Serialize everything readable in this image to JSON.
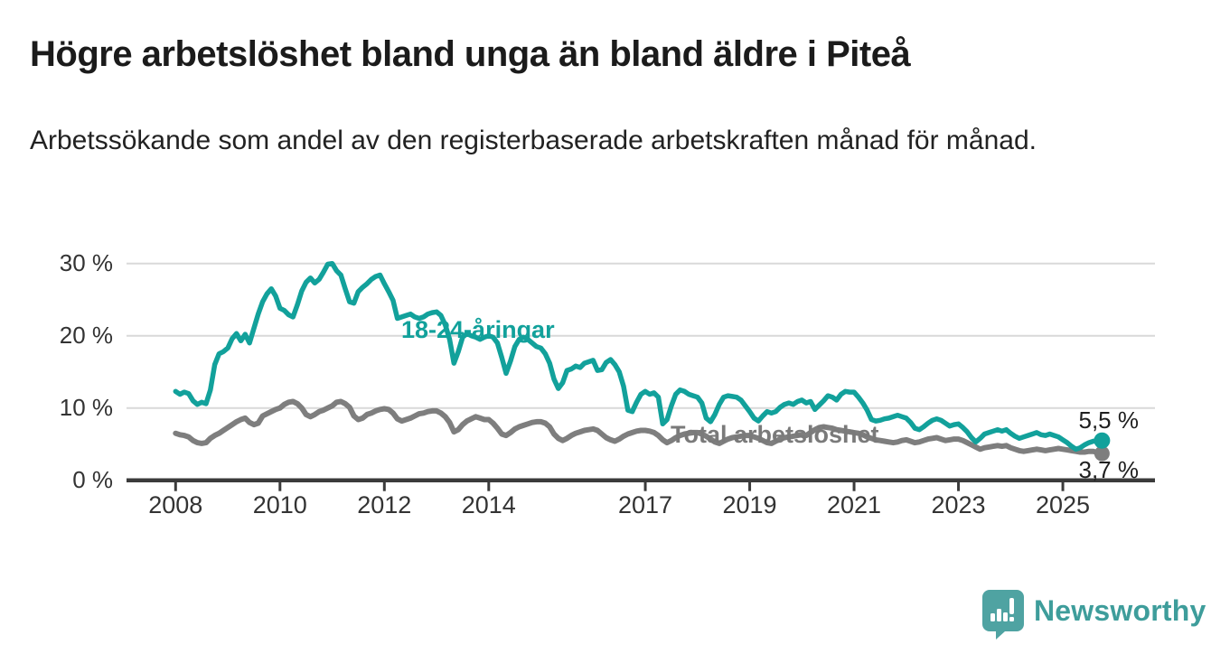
{
  "header": {
    "title": "Högre arbetslöshet bland unga än bland äldre i Piteå",
    "subtitle": "Arbetssökande som andel av den registerbaserade arbetskraften månad för månad."
  },
  "chart_data": {
    "type": "line",
    "title": "Högre arbetslöshet bland unga än bland äldre i Piteå",
    "subtitle": "Arbetssökande som andel av den registerbaserade arbetskraften månad för månad.",
    "x_start_year": 2008,
    "points_per_year": 12,
    "x_tick_years": [
      2008,
      2010,
      2012,
      2014,
      2017,
      2019,
      2021,
      2023,
      2025
    ],
    "x_tick_labels": [
      "2008",
      "2010",
      "2012",
      "2014",
      "2017",
      "2019",
      "2021",
      "2023",
      "2025"
    ],
    "y_ticks": [
      {
        "value": 30,
        "label": "30 %"
      },
      {
        "value": 20,
        "label": "20 %"
      },
      {
        "value": 10,
        "label": "10 %"
      },
      {
        "value": 0,
        "label": "0 %"
      }
    ],
    "ylim": [
      0,
      32
    ],
    "grid": "horizontal",
    "legend_position": "inline-labels",
    "series": [
      {
        "name": "18-24-åringar",
        "color": "#12a19b",
        "end_label": "5,5 %",
        "end_value": 5.5,
        "values": [
          12.3,
          11.9,
          12.2,
          12.0,
          11.0,
          10.5,
          10.8,
          10.6,
          12.5,
          16.0,
          17.5,
          17.8,
          18.3,
          19.6,
          20.3,
          19.3,
          20.2,
          19.0,
          21.0,
          23.0,
          24.7,
          25.8,
          26.5,
          25.5,
          23.8,
          23.5,
          22.9,
          22.6,
          24.3,
          26.2,
          27.4,
          28.0,
          27.3,
          27.8,
          28.8,
          29.9,
          30.0,
          29.0,
          28.4,
          26.5,
          24.7,
          24.5,
          26.1,
          26.7,
          27.2,
          27.8,
          28.2,
          28.4,
          27.2,
          26.1,
          24.9,
          22.4,
          22.6,
          22.8,
          23.0,
          22.6,
          22.4,
          22.6,
          23.0,
          23.2,
          23.3,
          22.8,
          21.5,
          19.5,
          16.2,
          17.8,
          19.8,
          20.3,
          20.0,
          19.8,
          19.5,
          19.8,
          20.0,
          19.8,
          19.0,
          17.0,
          14.8,
          16.5,
          18.5,
          19.5,
          19.8,
          19.5,
          19.0,
          18.5,
          18.3,
          17.5,
          16.2,
          14.0,
          12.7,
          13.5,
          15.2,
          15.4,
          15.8,
          15.6,
          16.2,
          16.4,
          16.6,
          15.2,
          15.3,
          16.3,
          16.7,
          16.0,
          15.0,
          13.0,
          9.7,
          9.5,
          10.8,
          11.9,
          12.3,
          11.9,
          12.1,
          11.5,
          7.8,
          8.4,
          10.3,
          11.9,
          12.5,
          12.3,
          11.9,
          11.7,
          11.5,
          10.7,
          8.6,
          8.1,
          9.1,
          10.5,
          11.5,
          11.7,
          11.6,
          11.5,
          11.1,
          10.3,
          9.5,
          8.6,
          8.2,
          8.9,
          9.5,
          9.3,
          9.5,
          10.1,
          10.5,
          10.7,
          10.5,
          10.9,
          11.1,
          10.7,
          10.9,
          9.8,
          10.4,
          11.0,
          11.7,
          11.5,
          11.1,
          11.9,
          12.3,
          12.2,
          12.2,
          11.5,
          10.7,
          9.7,
          8.4,
          8.2,
          8.3,
          8.5,
          8.6,
          8.8,
          9.0,
          8.8,
          8.6,
          8.0,
          7.2,
          7.0,
          7.4,
          7.9,
          8.3,
          8.5,
          8.3,
          7.9,
          7.5,
          7.7,
          7.8,
          7.3,
          6.7,
          5.9,
          5.3,
          5.8,
          6.4,
          6.6,
          6.8,
          7.0,
          6.8,
          7.0,
          6.5,
          6.1,
          5.8,
          6.0,
          6.2,
          6.4,
          6.6,
          6.3,
          6.2,
          6.4,
          6.2,
          6.0,
          5.6,
          5.2,
          4.7,
          4.3,
          4.5,
          4.9,
          5.2,
          5.4,
          5.5,
          5.5
        ]
      },
      {
        "name": "Total arbetslöshet",
        "color": "#7e7e7e",
        "end_label": "3,7 %",
        "end_value": 3.7,
        "values": [
          6.5,
          6.3,
          6.2,
          6.0,
          5.5,
          5.2,
          5.1,
          5.2,
          5.8,
          6.2,
          6.5,
          6.9,
          7.3,
          7.7,
          8.1,
          8.4,
          8.6,
          8.0,
          7.7,
          7.9,
          8.9,
          9.2,
          9.5,
          9.8,
          10.0,
          10.5,
          10.8,
          10.9,
          10.6,
          10.0,
          9.1,
          8.8,
          9.1,
          9.5,
          9.7,
          10.0,
          10.3,
          10.8,
          10.9,
          10.6,
          10.1,
          8.9,
          8.4,
          8.6,
          9.1,
          9.3,
          9.6,
          9.8,
          9.9,
          9.8,
          9.3,
          8.5,
          8.2,
          8.4,
          8.6,
          8.9,
          9.2,
          9.3,
          9.5,
          9.6,
          9.6,
          9.3,
          8.8,
          8.0,
          6.7,
          7.0,
          7.7,
          8.2,
          8.5,
          8.8,
          8.6,
          8.4,
          8.4,
          7.9,
          7.2,
          6.4,
          6.2,
          6.6,
          7.1,
          7.4,
          7.6,
          7.8,
          8.0,
          8.1,
          8.1,
          7.9,
          7.4,
          6.4,
          5.8,
          5.5,
          5.8,
          6.2,
          6.5,
          6.7,
          6.9,
          7.0,
          7.1,
          6.9,
          6.4,
          5.9,
          5.6,
          5.4,
          5.7,
          6.1,
          6.4,
          6.6,
          6.8,
          6.9,
          6.9,
          6.8,
          6.6,
          6.2,
          5.6,
          5.2,
          5.5,
          5.9,
          6.2,
          6.4,
          6.5,
          6.6,
          6.6,
          6.4,
          6.1,
          5.7,
          5.3,
          5.1,
          5.4,
          5.7,
          5.9,
          6.0,
          6.1,
          6.2,
          6.2,
          6.0,
          5.8,
          5.5,
          5.2,
          5.1,
          5.4,
          5.7,
          5.9,
          6.0,
          6.1,
          6.2,
          6.3,
          6.2,
          6.6,
          7.0,
          7.3,
          7.4,
          7.3,
          7.2,
          7.0,
          6.9,
          6.8,
          6.7,
          6.6,
          6.5,
          6.3,
          6.0,
          5.8,
          5.6,
          5.5,
          5.4,
          5.3,
          5.2,
          5.3,
          5.5,
          5.6,
          5.4,
          5.2,
          5.3,
          5.5,
          5.7,
          5.8,
          5.9,
          5.7,
          5.5,
          5.6,
          5.7,
          5.7,
          5.5,
          5.2,
          4.9,
          4.6,
          4.3,
          4.5,
          4.6,
          4.7,
          4.8,
          4.7,
          4.8,
          4.5,
          4.3,
          4.1,
          4.0,
          4.1,
          4.2,
          4.3,
          4.2,
          4.1,
          4.2,
          4.3,
          4.4,
          4.3,
          4.2,
          4.1,
          4.0,
          3.9,
          3.9,
          4.0,
          4.0,
          3.8,
          3.7
        ]
      }
    ]
  },
  "footer": {
    "brand": "Newsworthy"
  },
  "colors": {
    "accent_teal": "#12a19b",
    "line_gray": "#7e7e7e",
    "grid": "#d9d9d9",
    "axis": "#3b3b3b",
    "logo_teal": "#4fa3a2",
    "logo_text": "#3e9d9b"
  }
}
